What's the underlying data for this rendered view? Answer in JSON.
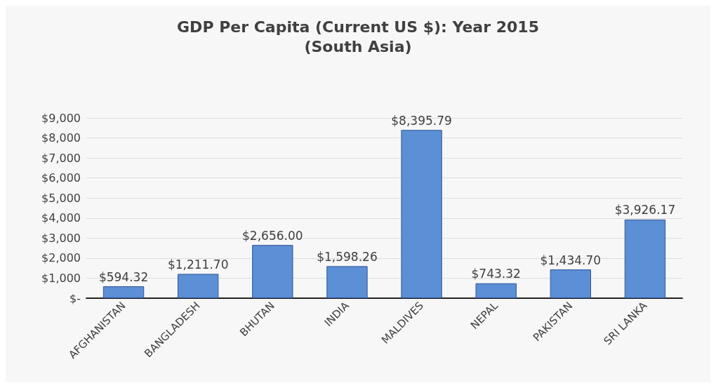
{
  "chart_data": {
    "type": "bar",
    "title": "GDP Per Capita (Current US $): Year 2015",
    "subtitle": "(South Asia)",
    "categories": [
      "AFGHANISTAN",
      "BANGLADESH",
      "BHUTAN",
      "INDIA",
      "MALDIVES",
      "NEPAL",
      "PAKISTAN",
      "SRI LANKA"
    ],
    "values": [
      594.32,
      1211.7,
      2656,
      1598.26,
      8395.79,
      743.32,
      1434.7,
      3926.17
    ],
    "value_labels": [
      "$594.32",
      "$1,211.70",
      "$2,656.00",
      "$1,598.26",
      "$8,395.79",
      "$743.32",
      "$1,434.70",
      "$3,926.17"
    ],
    "color": "#5b8fd6",
    "ylim": [
      0,
      9000
    ],
    "yticks": [
      {
        "value": 0,
        "label": "$-"
      },
      {
        "value": 1000,
        "label": "$1,000"
      },
      {
        "value": 2000,
        "label": "$2,000"
      },
      {
        "value": 3000,
        "label": "$3,000"
      },
      {
        "value": 4000,
        "label": "$4,000"
      },
      {
        "value": 5000,
        "label": "$5,000"
      },
      {
        "value": 6000,
        "label": "$6,000"
      },
      {
        "value": 7000,
        "label": "$7,000"
      },
      {
        "value": 8000,
        "label": "$8,000"
      },
      {
        "value": 9000,
        "label": "$9,000"
      }
    ],
    "grid": true
  }
}
